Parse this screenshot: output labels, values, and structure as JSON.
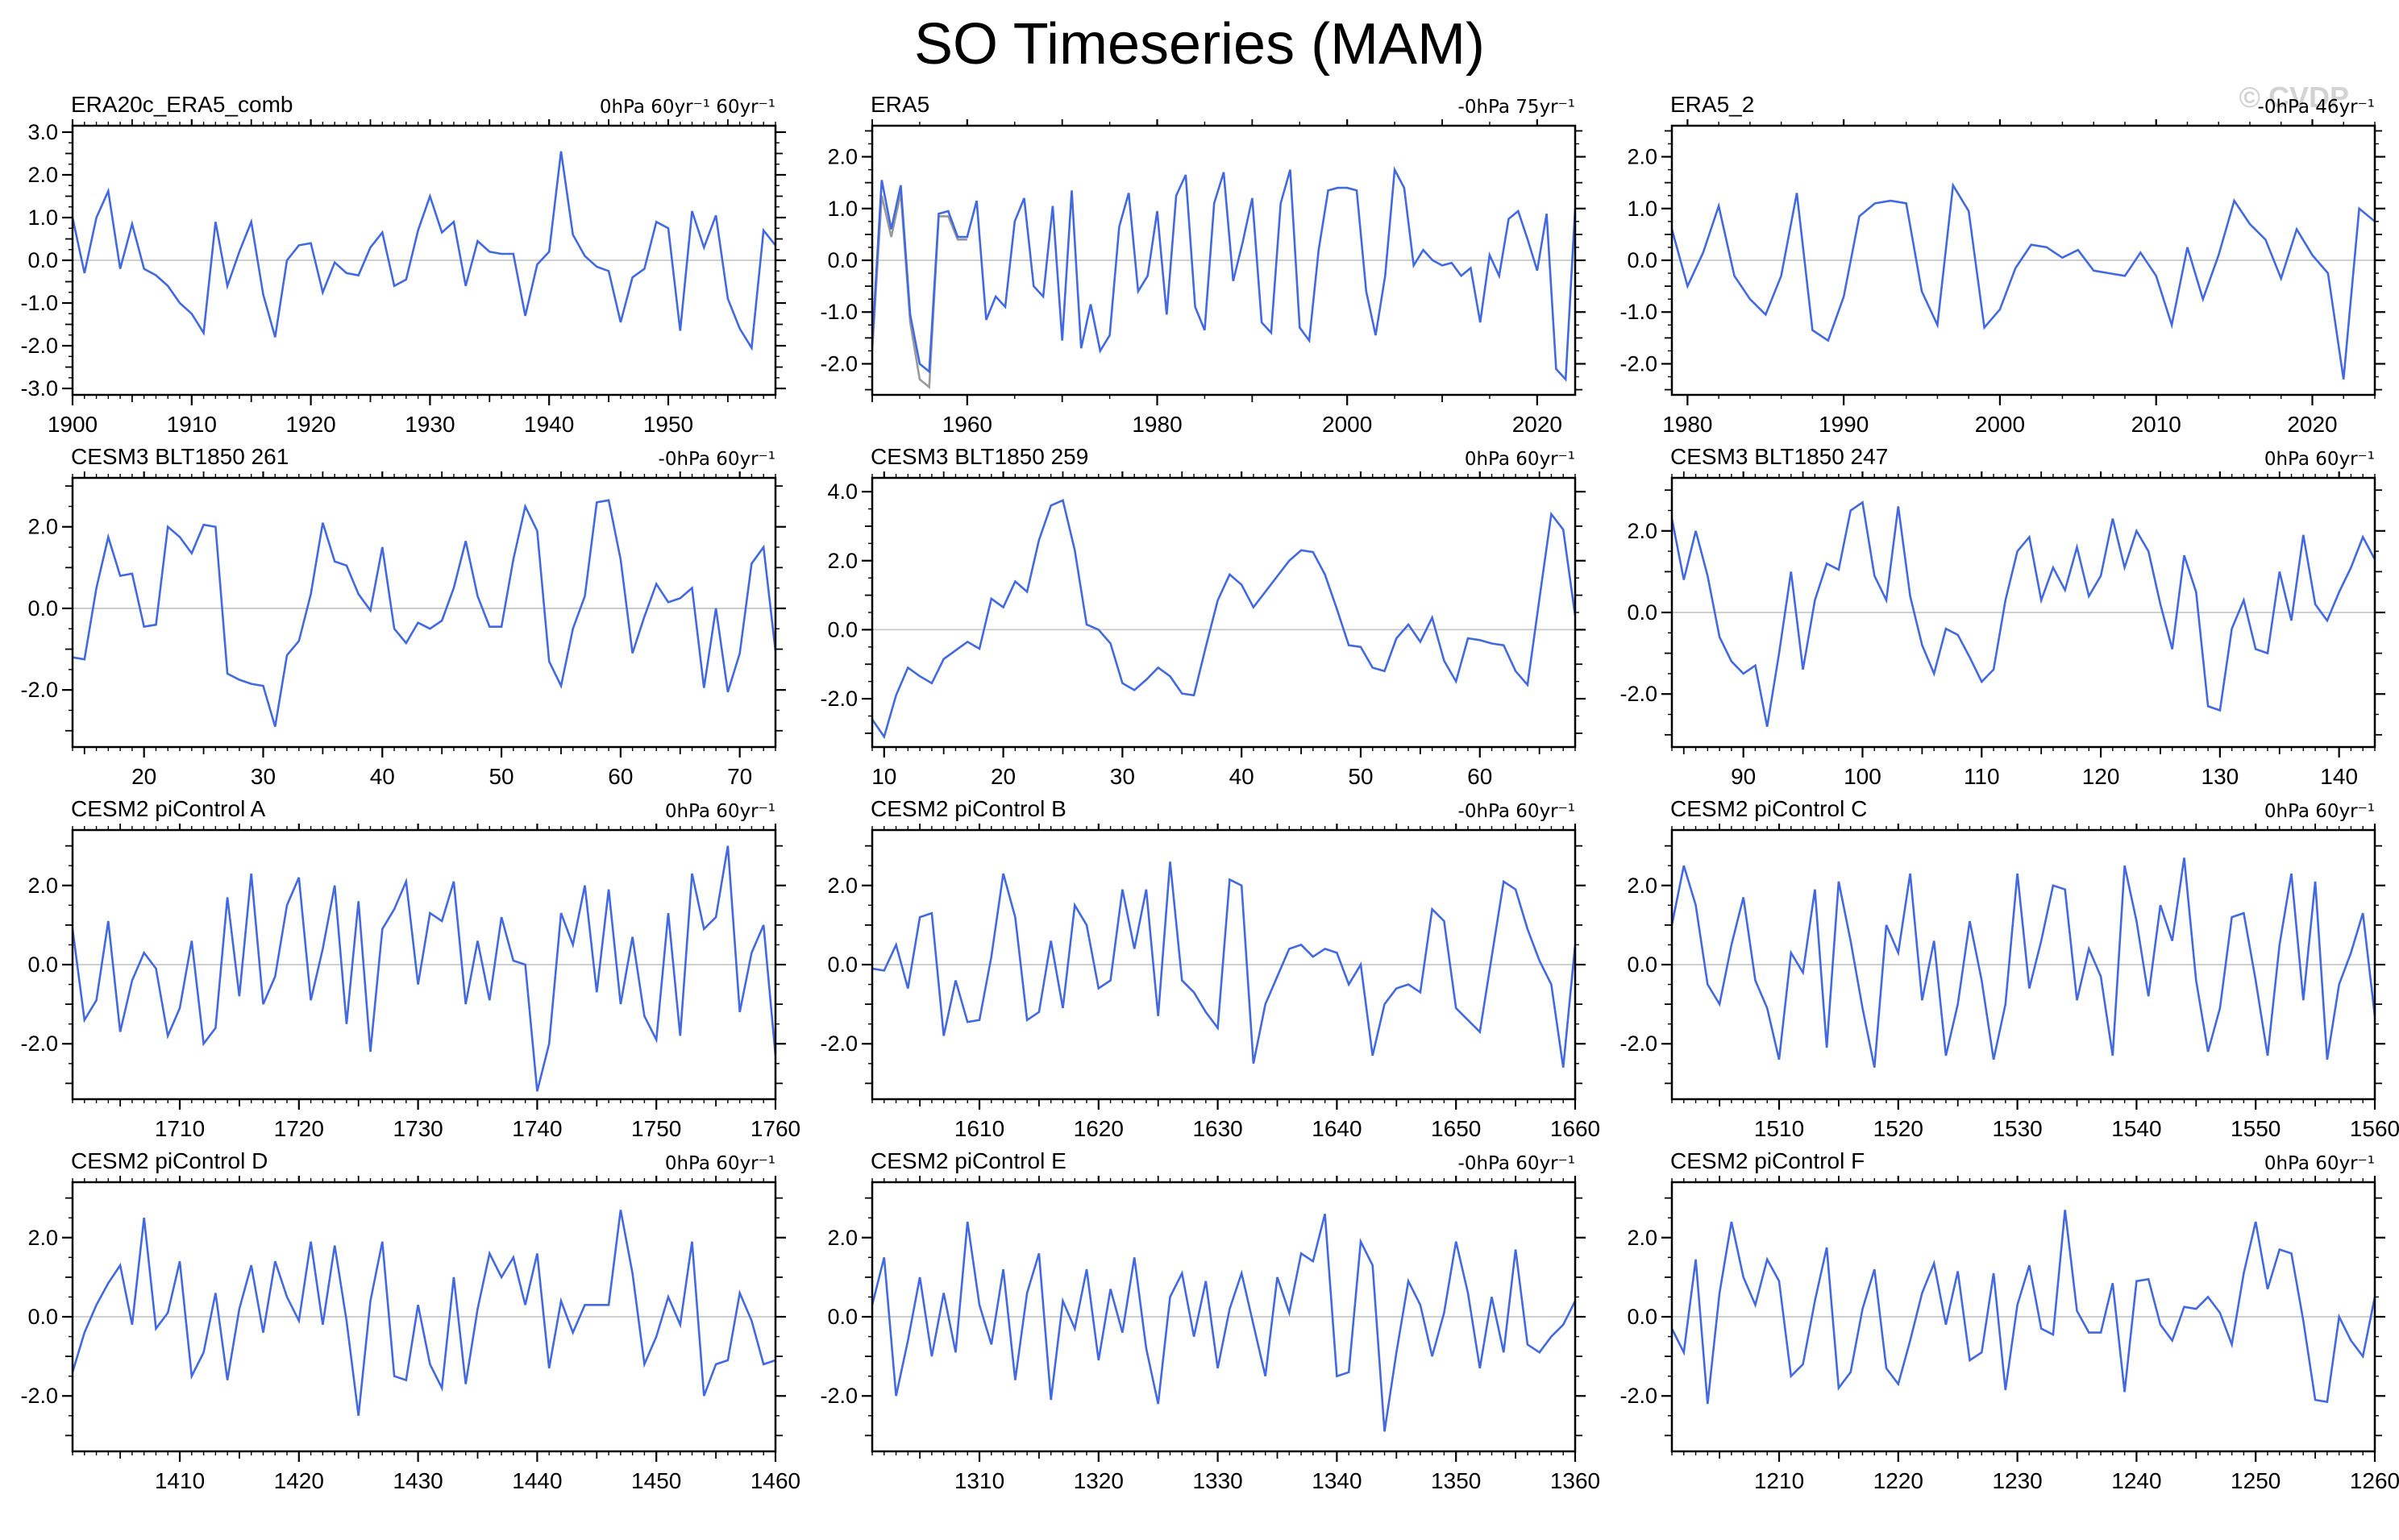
{
  "page_title": "SO Timeseries (MAM)",
  "watermark": "© CVDP",
  "colors": {
    "line": "#4169e1",
    "line_secondary": "#9a9a9a",
    "zero_line": "#c9c9c9",
    "axis": "#000000",
    "watermark": "#d3d3d3"
  },
  "chart_data": [
    {
      "type": "line",
      "title": "ERA20c_ERA5_comb",
      "units_label": "0hPa 60yr⁻¹ 60yr⁻¹",
      "xlim": [
        1900,
        1959
      ],
      "x_ticks": [
        1900,
        1910,
        1920,
        1930,
        1940,
        1950
      ],
      "x_major_step": 10,
      "x_medium_step": 5,
      "x_minor_step": 1,
      "ylim": [
        -3.15,
        3.15
      ],
      "y_ticks": [
        3.0,
        2.0,
        1.0,
        0.0,
        -1.0,
        -2.0,
        -3.0
      ],
      "y_major_step": 1.0,
      "y_medium_step": 0.5,
      "y_minor_step": 0.25,
      "zero_line": true,
      "x_start": 1900,
      "values": [
        1.0,
        -0.3,
        1.0,
        1.62,
        -0.2,
        0.85,
        -0.2,
        -0.35,
        -0.6,
        -1.0,
        -1.25,
        -1.7,
        0.9,
        -0.6,
        0.2,
        0.9,
        -0.8,
        -1.8,
        0.0,
        0.35,
        0.4,
        -0.75,
        -0.05,
        -0.3,
        -0.35,
        0.3,
        0.65,
        -0.6,
        -0.45,
        0.7,
        1.5,
        0.65,
        0.9,
        -0.6,
        0.45,
        0.2,
        0.15,
        0.15,
        -1.3,
        -0.1,
        0.2,
        2.55,
        0.6,
        0.1,
        -0.15,
        -0.25,
        -1.45,
        -0.4,
        -0.2,
        0.9,
        0.75,
        -1.65,
        1.15,
        0.3,
        1.05,
        -0.9,
        -1.6,
        -2.05,
        0.7,
        0.35
      ]
    },
    {
      "type": "line",
      "title": "ERA5",
      "units_label": "-0hPa 75yr⁻¹",
      "xlim": [
        1950,
        2024
      ],
      "x_ticks": [
        1960,
        1980,
        2000,
        2020
      ],
      "x_major_step": 20,
      "x_medium_step": 10,
      "x_minor_step": 5,
      "ylim": [
        -2.6,
        2.6
      ],
      "y_ticks": [
        2.0,
        1.0,
        0.0,
        -1.0,
        -2.0
      ],
      "y_major_step": 1.0,
      "y_medium_step": 0.5,
      "y_minor_step": 0.25,
      "zero_line": true,
      "x_start": 1950,
      "values": [
        -1.6,
        1.55,
        0.6,
        1.45,
        -1.05,
        -2.0,
        -2.15,
        0.9,
        0.95,
        0.45,
        0.45,
        1.15,
        -1.15,
        -0.7,
        -0.9,
        0.75,
        1.2,
        -0.5,
        -0.7,
        1.05,
        -1.55,
        1.35,
        -1.7,
        -0.85,
        -1.75,
        -1.45,
        0.65,
        1.3,
        -0.6,
        -0.3,
        0.95,
        -1.05,
        1.25,
        1.65,
        -0.9,
        -1.35,
        1.1,
        1.7,
        -0.4,
        0.35,
        1.2,
        -1.2,
        -1.4,
        1.1,
        1.75,
        -1.3,
        -1.55,
        0.2,
        1.35,
        1.4,
        1.4,
        1.35,
        -0.6,
        -1.45,
        -0.3,
        1.75,
        1.4,
        -0.1,
        0.2,
        0.0,
        -0.1,
        -0.05,
        -0.3,
        -0.15,
        -1.2,
        0.1,
        -0.3,
        0.8,
        0.95,
        0.4,
        -0.2,
        0.9,
        -2.1,
        -2.3,
        1.0
      ],
      "secondary": {
        "x_start": 1950,
        "values": [
          -1.75,
          1.25,
          0.45,
          1.3,
          -1.2,
          -2.3,
          -2.45,
          0.85,
          0.85,
          0.4,
          0.4
        ]
      }
    },
    {
      "type": "line",
      "title": "ERA5_2",
      "units_label": "-0hPa 46yr⁻¹",
      "xlim": [
        1979,
        2024
      ],
      "x_ticks": [
        1980,
        1990,
        2000,
        2010,
        2020
      ],
      "x_major_step": 10,
      "x_medium_step": 10,
      "x_minor_step": 2,
      "ylim": [
        -2.6,
        2.6
      ],
      "y_ticks": [
        2.0,
        1.0,
        0.0,
        -1.0,
        -2.0
      ],
      "y_major_step": 1.0,
      "y_medium_step": 0.5,
      "y_minor_step": 0.25,
      "zero_line": true,
      "x_start": 1979,
      "values": [
        0.6,
        -0.5,
        0.15,
        1.05,
        -0.3,
        -0.75,
        -1.05,
        -0.3,
        1.3,
        -1.35,
        -1.55,
        -0.7,
        0.85,
        1.1,
        1.15,
        1.1,
        -0.6,
        -1.25,
        1.45,
        0.95,
        -1.3,
        -0.95,
        -0.15,
        0.3,
        0.25,
        0.05,
        0.2,
        -0.2,
        -0.25,
        -0.3,
        0.15,
        -0.3,
        -1.25,
        0.25,
        -0.75,
        0.1,
        1.15,
        0.7,
        0.4,
        -0.35,
        0.6,
        0.1,
        -0.25,
        -2.3,
        1.0,
        0.75
      ]
    },
    {
      "type": "line",
      "title": "CESM3 BLT1850 261",
      "units_label": "-0hPa 60yr⁻¹",
      "xlim": [
        14,
        73
      ],
      "x_ticks": [
        20,
        30,
        40,
        50,
        60,
        70
      ],
      "x_major_step": 10,
      "x_medium_step": 5,
      "x_minor_step": 1,
      "ylim": [
        -3.4,
        3.2
      ],
      "y_ticks": [
        2.0,
        0.0,
        -2.0
      ],
      "y_major_step": 2.0,
      "y_medium_step": 1.0,
      "y_minor_step": 0.5,
      "zero_line": true,
      "x_start": 14,
      "values": [
        -1.2,
        -1.25,
        0.5,
        1.75,
        0.8,
        0.85,
        -0.45,
        -0.4,
        2.0,
        1.75,
        1.35,
        2.05,
        2.0,
        -1.6,
        -1.75,
        -1.85,
        -1.9,
        -2.9,
        -1.15,
        -0.8,
        0.35,
        2.1,
        1.15,
        1.05,
        0.35,
        -0.05,
        1.5,
        -0.5,
        -0.85,
        -0.35,
        -0.5,
        -0.3,
        0.5,
        1.65,
        0.3,
        -0.45,
        -0.45,
        1.2,
        2.5,
        1.9,
        -1.3,
        -1.9,
        -0.5,
        0.3,
        2.6,
        2.65,
        1.2,
        -1.1,
        -0.2,
        0.6,
        0.15,
        0.25,
        0.5,
        -1.95,
        0.0,
        -2.05,
        -1.1,
        1.1,
        1.5,
        -1.05
      ]
    },
    {
      "type": "line",
      "title": "CESM3 BLT1850 259",
      "units_label": "0hPa 60yr⁻¹",
      "xlim": [
        9,
        68
      ],
      "x_ticks": [
        10,
        20,
        30,
        40,
        50,
        60
      ],
      "x_major_step": 10,
      "x_medium_step": 5,
      "x_minor_step": 1,
      "ylim": [
        -3.4,
        4.4
      ],
      "y_ticks": [
        4.0,
        2.0,
        0.0,
        -2.0
      ],
      "y_major_step": 2.0,
      "y_medium_step": 1.0,
      "y_minor_step": 0.5,
      "zero_line": true,
      "x_start": 9,
      "values": [
        -2.6,
        -3.1,
        -1.9,
        -1.1,
        -1.35,
        -1.55,
        -0.85,
        -0.6,
        -0.35,
        -0.55,
        0.9,
        0.65,
        1.4,
        1.1,
        2.6,
        3.6,
        3.75,
        2.3,
        0.15,
        0.0,
        -0.4,
        -1.55,
        -1.75,
        -1.45,
        -1.1,
        -1.35,
        -1.85,
        -1.9,
        -0.5,
        0.85,
        1.6,
        1.3,
        0.65,
        1.1,
        1.55,
        2.0,
        2.3,
        2.25,
        1.6,
        0.6,
        -0.45,
        -0.5,
        -1.1,
        -1.2,
        -0.25,
        0.15,
        -0.35,
        0.35,
        -0.9,
        -1.5,
        -0.25,
        -0.3,
        -0.4,
        -0.45,
        -1.2,
        -1.6,
        0.9,
        3.35,
        2.9,
        0.4
      ]
    },
    {
      "type": "line",
      "title": "CESM3 BLT1850 247",
      "units_label": "0hPa 60yr⁻¹",
      "xlim": [
        84,
        143
      ],
      "x_ticks": [
        90,
        100,
        110,
        120,
        130,
        140
      ],
      "x_major_step": 10,
      "x_medium_step": 5,
      "x_minor_step": 1,
      "ylim": [
        -3.3,
        3.3
      ],
      "y_ticks": [
        2.0,
        0.0,
        -2.0
      ],
      "y_major_step": 2.0,
      "y_medium_step": 1.0,
      "y_minor_step": 0.5,
      "zero_line": true,
      "x_start": 84,
      "values": [
        2.3,
        0.8,
        2.0,
        0.9,
        -0.6,
        -1.2,
        -1.5,
        -1.3,
        -2.8,
        -1.0,
        1.0,
        -1.4,
        0.3,
        1.2,
        1.05,
        2.5,
        2.7,
        0.9,
        0.3,
        2.6,
        0.4,
        -0.8,
        -1.5,
        -0.4,
        -0.55,
        -1.1,
        -1.7,
        -1.4,
        0.3,
        1.5,
        1.85,
        0.3,
        1.1,
        0.55,
        1.6,
        0.4,
        0.9,
        2.3,
        1.1,
        2.0,
        1.5,
        0.2,
        -0.9,
        1.4,
        0.5,
        -2.3,
        -2.4,
        -0.4,
        0.3,
        -0.9,
        -1.0,
        1.0,
        -0.2,
        1.9,
        0.2,
        -0.2,
        0.5,
        1.1,
        1.85,
        1.3
      ]
    },
    {
      "type": "line",
      "title": "CESM2 piControl A",
      "units_label": "0hPa 60yr⁻¹",
      "xlim": [
        1701,
        1760
      ],
      "x_ticks": [
        1710,
        1720,
        1730,
        1740,
        1750,
        1760
      ],
      "x_major_step": 10,
      "x_medium_step": 5,
      "x_minor_step": 1,
      "ylim": [
        -3.4,
        3.4
      ],
      "y_ticks": [
        2.0,
        0.0,
        -2.0
      ],
      "y_major_step": 2.0,
      "y_medium_step": 1.0,
      "y_minor_step": 0.5,
      "zero_line": true,
      "x_start": 1701,
      "values": [
        0.9,
        -1.4,
        -0.9,
        1.1,
        -1.7,
        -0.4,
        0.3,
        -0.1,
        -1.8,
        -1.1,
        0.6,
        -2.0,
        -1.6,
        1.7,
        -0.8,
        2.3,
        -1.0,
        -0.3,
        1.5,
        2.2,
        -0.9,
        0.4,
        2.0,
        -1.5,
        1.6,
        -2.2,
        0.9,
        1.4,
        2.1,
        -0.5,
        1.3,
        1.1,
        2.1,
        -1.0,
        0.6,
        -0.9,
        1.2,
        0.1,
        0.0,
        -3.2,
        -2.0,
        1.3,
        0.5,
        2.0,
        -0.7,
        1.9,
        -1.0,
        0.7,
        -1.3,
        -1.9,
        1.3,
        -1.8,
        2.3,
        0.9,
        1.2,
        3.0,
        -1.2,
        0.3,
        1.0,
        -2.3
      ]
    },
    {
      "type": "line",
      "title": "CESM2 piControl B",
      "units_label": "-0hPa 60yr⁻¹",
      "xlim": [
        1601,
        1660
      ],
      "x_ticks": [
        1610,
        1620,
        1630,
        1640,
        1650,
        1660
      ],
      "x_major_step": 10,
      "x_medium_step": 5,
      "x_minor_step": 1,
      "ylim": [
        -3.4,
        3.4
      ],
      "y_ticks": [
        2.0,
        0.0,
        -2.0
      ],
      "y_major_step": 2.0,
      "y_medium_step": 1.0,
      "y_minor_step": 0.5,
      "zero_line": true,
      "x_start": 1601,
      "values": [
        -0.1,
        -0.15,
        0.5,
        -0.6,
        1.2,
        1.3,
        -1.8,
        -0.4,
        -1.45,
        -1.4,
        0.2,
        2.3,
        1.2,
        -1.4,
        -1.2,
        0.6,
        -1.1,
        1.5,
        1.0,
        -0.6,
        -0.4,
        1.9,
        0.4,
        1.9,
        -1.3,
        2.6,
        -0.4,
        -0.7,
        -1.2,
        -1.6,
        2.15,
        2.0,
        -2.5,
        -1.0,
        -0.3,
        0.4,
        0.5,
        0.2,
        0.4,
        0.3,
        -0.5,
        0.0,
        -2.3,
        -1.0,
        -0.6,
        -0.5,
        -0.7,
        1.4,
        1.1,
        -1.1,
        -1.4,
        -1.7,
        0.2,
        2.1,
        1.9,
        0.9,
        0.1,
        -0.5,
        -2.6,
        0.5
      ]
    },
    {
      "type": "line",
      "title": "CESM2 piControl C",
      "units_label": "0hPa 60yr⁻¹",
      "xlim": [
        1501,
        1560
      ],
      "x_ticks": [
        1510,
        1520,
        1530,
        1540,
        1550,
        1560
      ],
      "x_major_step": 10,
      "x_medium_step": 5,
      "x_minor_step": 1,
      "ylim": [
        -3.4,
        3.4
      ],
      "y_ticks": [
        2.0,
        0.0,
        -2.0
      ],
      "y_major_step": 2.0,
      "y_medium_step": 1.0,
      "y_minor_step": 0.5,
      "zero_line": true,
      "x_start": 1501,
      "values": [
        1.0,
        2.5,
        1.5,
        -0.5,
        -1.0,
        0.5,
        1.7,
        -0.4,
        -1.1,
        -2.4,
        0.3,
        -0.2,
        1.9,
        -2.1,
        2.1,
        0.6,
        -1.1,
        -2.6,
        1.0,
        0.3,
        2.3,
        -0.9,
        0.6,
        -2.3,
        -1.0,
        1.1,
        -0.4,
        -2.4,
        -1.0,
        2.3,
        -0.6,
        0.6,
        2.0,
        1.9,
        -0.9,
        0.4,
        -0.3,
        -2.3,
        2.5,
        1.1,
        -0.8,
        1.5,
        0.6,
        2.7,
        -0.4,
        -2.2,
        -1.1,
        1.2,
        1.3,
        -0.4,
        -2.3,
        0.5,
        2.3,
        -0.9,
        2.1,
        -2.4,
        -0.5,
        0.3,
        1.3,
        -1.3
      ]
    },
    {
      "type": "line",
      "title": "CESM2 piControl D",
      "units_label": "0hPa 60yr⁻¹",
      "xlim": [
        1401,
        1460
      ],
      "x_ticks": [
        1410,
        1420,
        1430,
        1440,
        1450,
        1460
      ],
      "x_major_step": 10,
      "x_medium_step": 5,
      "x_minor_step": 1,
      "ylim": [
        -3.4,
        3.4
      ],
      "y_ticks": [
        2.0,
        0.0,
        -2.0
      ],
      "y_major_step": 2.0,
      "y_medium_step": 1.0,
      "y_minor_step": 0.5,
      "zero_line": true,
      "x_start": 1401,
      "values": [
        -1.4,
        -0.4,
        0.3,
        0.85,
        1.3,
        -0.2,
        2.5,
        -0.3,
        0.1,
        1.4,
        -1.5,
        -0.9,
        0.6,
        -1.6,
        0.2,
        1.3,
        -0.4,
        1.4,
        0.5,
        -0.1,
        1.9,
        -0.2,
        1.8,
        -0.1,
        -2.5,
        0.4,
        1.9,
        -1.5,
        -1.6,
        0.3,
        -1.2,
        -1.8,
        1.0,
        -1.7,
        0.2,
        1.6,
        1.0,
        1.5,
        0.3,
        1.6,
        -1.3,
        0.4,
        -0.4,
        0.3,
        0.3,
        0.3,
        2.7,
        1.1,
        -1.2,
        -0.5,
        0.5,
        -0.2,
        1.9,
        -2.0,
        -1.2,
        -1.1,
        0.6,
        -0.1,
        -1.2,
        -1.1
      ]
    },
    {
      "type": "line",
      "title": "CESM2 piControl E",
      "units_label": "-0hPa 60yr⁻¹",
      "xlim": [
        1301,
        1360
      ],
      "x_ticks": [
        1310,
        1320,
        1330,
        1340,
        1350,
        1360
      ],
      "x_major_step": 10,
      "x_medium_step": 5,
      "x_minor_step": 1,
      "ylim": [
        -3.4,
        3.4
      ],
      "y_ticks": [
        2.0,
        0.0,
        -2.0
      ],
      "y_major_step": 2.0,
      "y_medium_step": 1.0,
      "y_minor_step": 0.5,
      "zero_line": true,
      "x_start": 1301,
      "values": [
        0.3,
        1.5,
        -2.0,
        -0.6,
        1.0,
        -1.0,
        0.6,
        -0.9,
        2.4,
        0.3,
        -0.7,
        1.2,
        -1.6,
        0.6,
        1.6,
        -2.1,
        0.4,
        -0.3,
        1.2,
        -1.1,
        0.7,
        -0.4,
        1.5,
        -0.8,
        -2.2,
        0.5,
        1.1,
        -0.5,
        0.9,
        -1.3,
        0.2,
        1.1,
        -0.2,
        -1.5,
        1.0,
        0.1,
        1.6,
        1.4,
        2.6,
        -1.5,
        -1.4,
        1.9,
        1.3,
        -2.9,
        -0.9,
        0.9,
        0.3,
        -1.0,
        0.1,
        1.9,
        0.6,
        -1.3,
        0.5,
        -0.9,
        1.7,
        -0.7,
        -0.9,
        -0.5,
        -0.2,
        0.4
      ]
    },
    {
      "type": "line",
      "title": "CESM2 piControl F",
      "units_label": "0hPa 60yr⁻¹",
      "xlim": [
        1201,
        1260
      ],
      "x_ticks": [
        1210,
        1220,
        1230,
        1240,
        1250,
        1260
      ],
      "x_major_step": 10,
      "x_medium_step": 5,
      "x_minor_step": 1,
      "ylim": [
        -3.4,
        3.4
      ],
      "y_ticks": [
        2.0,
        0.0,
        -2.0
      ],
      "y_major_step": 2.0,
      "y_medium_step": 1.0,
      "y_minor_step": 0.5,
      "zero_line": true,
      "x_start": 1201,
      "values": [
        -0.3,
        -0.9,
        1.45,
        -2.2,
        0.6,
        2.4,
        1.0,
        0.3,
        1.45,
        0.9,
        -1.5,
        -1.2,
        0.4,
        1.75,
        -1.8,
        -1.4,
        0.2,
        1.2,
        -1.3,
        -1.7,
        -0.6,
        0.6,
        1.35,
        -0.2,
        1.15,
        -1.1,
        -0.9,
        1.1,
        -1.85,
        0.3,
        1.3,
        -0.3,
        -0.45,
        2.7,
        0.15,
        -0.4,
        -0.4,
        0.85,
        -1.9,
        0.9,
        0.95,
        -0.2,
        -0.6,
        0.25,
        0.2,
        0.5,
        0.1,
        -0.7,
        1.1,
        2.4,
        0.7,
        1.7,
        1.6,
        -0.1,
        -2.1,
        -2.15,
        0.0,
        -0.6,
        -1.0,
        0.5
      ]
    }
  ]
}
